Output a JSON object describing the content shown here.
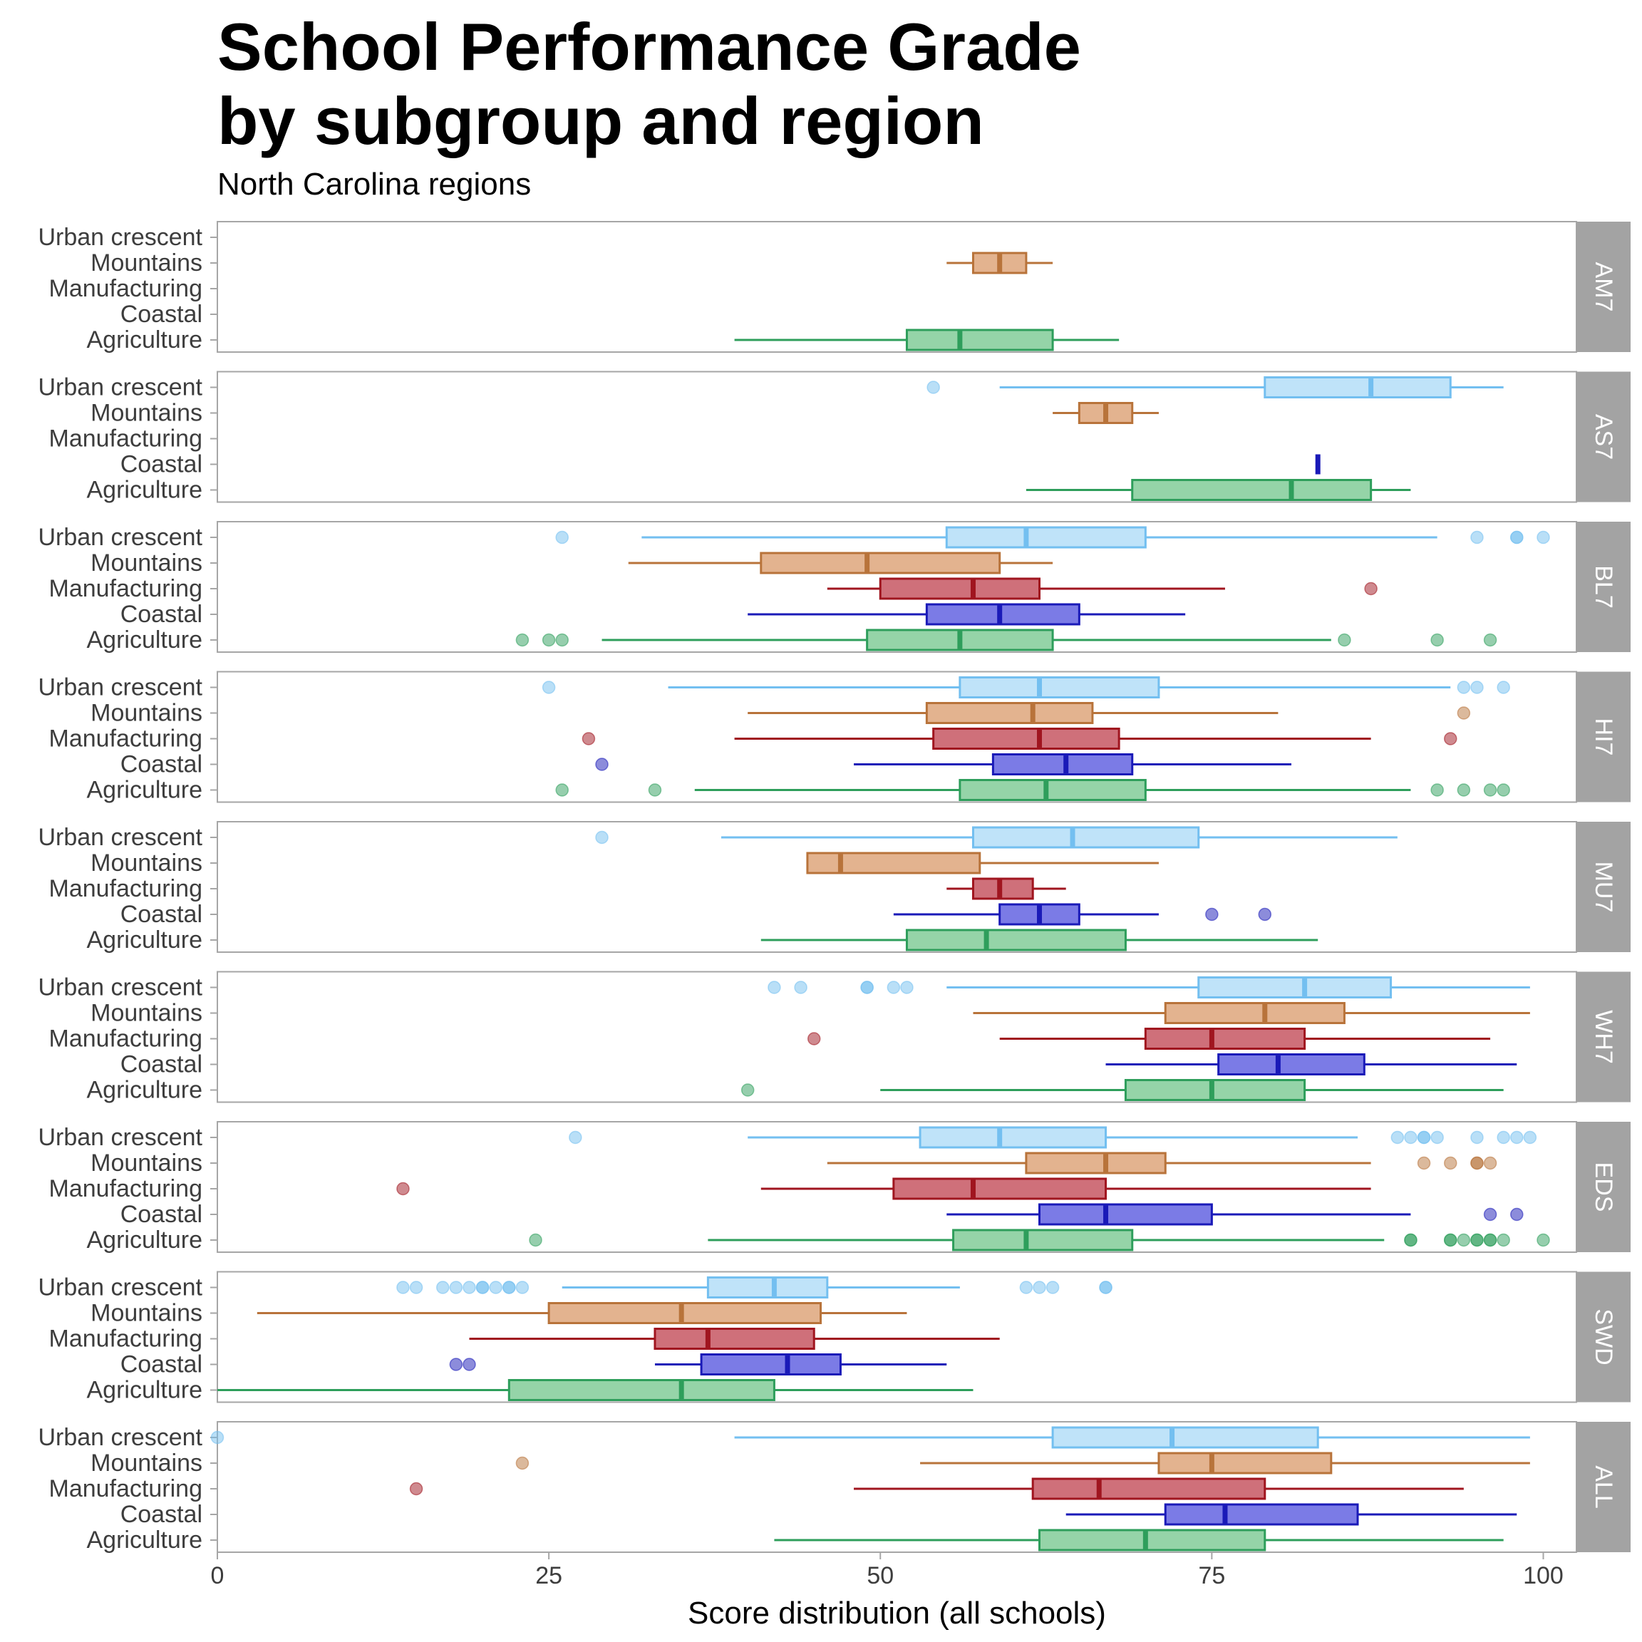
{
  "title_line1": "School Performance Grade",
  "title_line2": "by subgroup and region",
  "subtitle": "North Carolina regions",
  "chart_data": {
    "type": "boxplot",
    "orientation": "horizontal",
    "xlabel": "Score distribution (all schools)",
    "xlim": [
      0,
      102.5
    ],
    "x_ticks": [
      0,
      25,
      50,
      75,
      100
    ],
    "grid": false,
    "legend": "none",
    "regions": [
      "Urban crescent",
      "Mountains",
      "Manufacturing",
      "Coastal",
      "Agriculture"
    ],
    "region_colors": {
      "Urban crescent": "#73bff0",
      "Mountains": "#b8733a",
      "Manufacturing": "#a0151f",
      "Coastal": "#1a1ab8",
      "Agriculture": "#2e9e5b"
    },
    "region_fills": {
      "Urban crescent": "#bfe3f9",
      "Mountains": "#e3b38f",
      "Manufacturing": "#cf707a",
      "Coastal": "#7b7be6",
      "Agriculture": "#95d4a8"
    },
    "strip_color": "#a3a3a3",
    "panels": [
      {
        "facet": "AM7",
        "boxes": [
          {
            "region": "Mountains",
            "whisker_low": 55,
            "q1": 57,
            "median": 59,
            "q3": 61,
            "whisker_high": 63,
            "outliers": []
          },
          {
            "region": "Agriculture",
            "whisker_low": 39,
            "q1": 52,
            "median": 56,
            "q3": 63,
            "whisker_high": 68,
            "outliers": []
          }
        ]
      },
      {
        "facet": "AS7",
        "boxes": [
          {
            "region": "Urban crescent",
            "whisker_low": 59,
            "q1": 79,
            "median": 87,
            "q3": 93,
            "whisker_high": 97,
            "outliers": [
              54
            ]
          },
          {
            "region": "Mountains",
            "whisker_low": 63,
            "q1": 65,
            "median": 67,
            "q3": 69,
            "whisker_high": 71,
            "outliers": []
          },
          {
            "region": "Coastal",
            "whisker_low": 83,
            "q1": 83,
            "median": 83,
            "q3": 83,
            "whisker_high": 83,
            "outliers": []
          },
          {
            "region": "Agriculture",
            "whisker_low": 61,
            "q1": 69,
            "median": 81,
            "q3": 87,
            "whisker_high": 90,
            "outliers": []
          }
        ]
      },
      {
        "facet": "BL7",
        "boxes": [
          {
            "region": "Urban crescent",
            "whisker_low": 32,
            "q1": 55,
            "median": 61,
            "q3": 70,
            "whisker_high": 92,
            "outliers": [
              26,
              95,
              98,
              98,
              100
            ]
          },
          {
            "region": "Mountains",
            "whisker_low": 31,
            "q1": 41,
            "median": 49,
            "q3": 59,
            "whisker_high": 63,
            "outliers": []
          },
          {
            "region": "Manufacturing",
            "whisker_low": 46,
            "q1": 50,
            "median": 57,
            "q3": 62,
            "whisker_high": 76,
            "outliers": [
              87
            ]
          },
          {
            "region": "Coastal",
            "whisker_low": 40,
            "q1": 53.5,
            "median": 59,
            "q3": 65,
            "whisker_high": 73,
            "outliers": []
          },
          {
            "region": "Agriculture",
            "whisker_low": 29,
            "q1": 49,
            "median": 56,
            "q3": 63,
            "whisker_high": 84,
            "outliers": [
              23,
              25,
              26,
              85,
              92,
              96
            ]
          }
        ]
      },
      {
        "facet": "HI7",
        "boxes": [
          {
            "region": "Urban crescent",
            "whisker_low": 34,
            "q1": 56,
            "median": 62,
            "q3": 71,
            "whisker_high": 93,
            "outliers": [
              25,
              94,
              95,
              97
            ]
          },
          {
            "region": "Mountains",
            "whisker_low": 40,
            "q1": 53.5,
            "median": 61.5,
            "q3": 66,
            "whisker_high": 80,
            "outliers": [
              94
            ]
          },
          {
            "region": "Manufacturing",
            "whisker_low": 39,
            "q1": 54,
            "median": 62,
            "q3": 68,
            "whisker_high": 87,
            "outliers": [
              28,
              93
            ]
          },
          {
            "region": "Coastal",
            "whisker_low": 48,
            "q1": 58.5,
            "median": 64,
            "q3": 69,
            "whisker_high": 81,
            "outliers": [
              29
            ]
          },
          {
            "region": "Agriculture",
            "whisker_low": 36,
            "q1": 56,
            "median": 62.5,
            "q3": 70,
            "whisker_high": 90,
            "outliers": [
              26,
              33,
              92,
              94,
              96,
              97
            ]
          }
        ]
      },
      {
        "facet": "MU7",
        "boxes": [
          {
            "region": "Urban crescent",
            "whisker_low": 38,
            "q1": 57,
            "median": 64.5,
            "q3": 74,
            "whisker_high": 89,
            "outliers": [
              29
            ]
          },
          {
            "region": "Mountains",
            "whisker_low": 44.5,
            "q1": 44.5,
            "median": 47,
            "q3": 57.5,
            "whisker_high": 71,
            "outliers": []
          },
          {
            "region": "Manufacturing",
            "whisker_low": 55,
            "q1": 57,
            "median": 59,
            "q3": 61.5,
            "whisker_high": 64,
            "outliers": []
          },
          {
            "region": "Coastal",
            "whisker_low": 51,
            "q1": 59,
            "median": 62,
            "q3": 65,
            "whisker_high": 71,
            "outliers": [
              75,
              79
            ]
          },
          {
            "region": "Agriculture",
            "whisker_low": 41,
            "q1": 52,
            "median": 58,
            "q3": 68.5,
            "whisker_high": 83,
            "outliers": []
          }
        ]
      },
      {
        "facet": "WH7",
        "boxes": [
          {
            "region": "Urban crescent",
            "whisker_low": 55,
            "q1": 74,
            "median": 82,
            "q3": 88.5,
            "whisker_high": 99,
            "outliers": [
              42,
              44,
              49,
              49,
              51,
              52
            ]
          },
          {
            "region": "Mountains",
            "whisker_low": 57,
            "q1": 71.5,
            "median": 79,
            "q3": 85,
            "whisker_high": 99,
            "outliers": []
          },
          {
            "region": "Manufacturing",
            "whisker_low": 59,
            "q1": 70,
            "median": 75,
            "q3": 82,
            "whisker_high": 96,
            "outliers": [
              45
            ]
          },
          {
            "region": "Coastal",
            "whisker_low": 67,
            "q1": 75.5,
            "median": 80,
            "q3": 86.5,
            "whisker_high": 98,
            "outliers": []
          },
          {
            "region": "Agriculture",
            "whisker_low": 50,
            "q1": 68.5,
            "median": 75,
            "q3": 82,
            "whisker_high": 97,
            "outliers": [
              40
            ]
          }
        ]
      },
      {
        "facet": "EDS",
        "boxes": [
          {
            "region": "Urban crescent",
            "whisker_low": 40,
            "q1": 53,
            "median": 59,
            "q3": 67,
            "whisker_high": 86,
            "outliers": [
              27,
              89,
              90,
              91,
              91,
              92,
              95,
              97,
              98,
              99
            ]
          },
          {
            "region": "Mountains",
            "whisker_low": 46,
            "q1": 61,
            "median": 67,
            "q3": 71.5,
            "whisker_high": 87,
            "outliers": [
              91,
              93,
              95,
              95,
              96
            ]
          },
          {
            "region": "Manufacturing",
            "whisker_low": 41,
            "q1": 51,
            "median": 57,
            "q3": 67,
            "whisker_high": 87,
            "outliers": [
              14
            ]
          },
          {
            "region": "Coastal",
            "whisker_low": 55,
            "q1": 62,
            "median": 67,
            "q3": 75,
            "whisker_high": 90,
            "outliers": [
              96,
              98
            ]
          },
          {
            "region": "Agriculture",
            "whisker_low": 37,
            "q1": 55.5,
            "median": 61,
            "q3": 69,
            "whisker_high": 88,
            "outliers": [
              24,
              90,
              90,
              93,
              93,
              94,
              95,
              95,
              96,
              96,
              97,
              100
            ]
          }
        ]
      },
      {
        "facet": "SWD",
        "boxes": [
          {
            "region": "Urban crescent",
            "whisker_low": 26,
            "q1": 37,
            "median": 42,
            "q3": 46,
            "whisker_high": 56,
            "outliers": [
              14,
              15,
              17,
              18,
              19,
              20,
              20,
              21,
              22,
              22,
              23,
              61,
              62,
              63,
              67,
              67
            ]
          },
          {
            "region": "Mountains",
            "whisker_low": 3,
            "q1": 25,
            "median": 35,
            "q3": 45.5,
            "whisker_high": 52,
            "outliers": []
          },
          {
            "region": "Manufacturing",
            "whisker_low": 19,
            "q1": 33,
            "median": 37,
            "q3": 45,
            "whisker_high": 59,
            "outliers": []
          },
          {
            "region": "Coastal",
            "whisker_low": 33,
            "q1": 36.5,
            "median": 43,
            "q3": 47,
            "whisker_high": 55,
            "outliers": [
              18,
              19
            ]
          },
          {
            "region": "Agriculture",
            "whisker_low": 0,
            "q1": 22,
            "median": 35,
            "q3": 42,
            "whisker_high": 57,
            "outliers": []
          }
        ]
      },
      {
        "facet": "ALL",
        "boxes": [
          {
            "region": "Urban crescent",
            "whisker_low": 39,
            "q1": 63,
            "median": 72,
            "q3": 83,
            "whisker_high": 99,
            "outliers": [
              0
            ]
          },
          {
            "region": "Mountains",
            "whisker_low": 53,
            "q1": 71,
            "median": 75,
            "q3": 84,
            "whisker_high": 99,
            "outliers": [
              23
            ]
          },
          {
            "region": "Manufacturing",
            "whisker_low": 48,
            "q1": 61.5,
            "median": 66.5,
            "q3": 79,
            "whisker_high": 94,
            "outliers": [
              15
            ]
          },
          {
            "region": "Coastal",
            "whisker_low": 64,
            "q1": 71.5,
            "median": 76,
            "q3": 86,
            "whisker_high": 98,
            "outliers": []
          },
          {
            "region": "Agriculture",
            "whisker_low": 42,
            "q1": 62,
            "median": 70,
            "q3": 79,
            "whisker_high": 97,
            "outliers": []
          }
        ]
      }
    ]
  }
}
